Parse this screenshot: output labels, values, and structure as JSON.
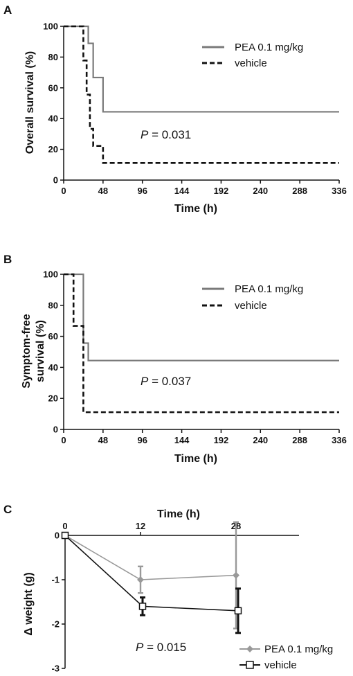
{
  "chart_data": [
    {
      "panel": "A",
      "type": "line",
      "step": true,
      "ylabel": "Overall survival (%)",
      "xlabel": "Time (h)",
      "xlim": [
        0,
        336
      ],
      "ylim": [
        0,
        100
      ],
      "xticks": [
        "0",
        "48",
        "96",
        "144",
        "192",
        "240",
        "288",
        "336"
      ],
      "yticks": [
        "0",
        "20",
        "40",
        "60",
        "80",
        "100"
      ],
      "pvalue": "0.031",
      "legend_position": "top-right",
      "series": [
        {
          "name": "PEA 0.1 mg/kg",
          "color": "#7a7a7a",
          "dash": "solid",
          "x": [
            0,
            30,
            36,
            48,
            336
          ],
          "y": [
            100,
            88.9,
            66.7,
            44.4,
            44.4
          ]
        },
        {
          "name": "vehicle",
          "color": "#111111",
          "dash": "dashed",
          "x": [
            0,
            24,
            28,
            32,
            36,
            48,
            336
          ],
          "y": [
            100,
            77.8,
            55.6,
            33.3,
            22.2,
            11.1,
            11.1
          ]
        }
      ]
    },
    {
      "panel": "B",
      "type": "line",
      "step": true,
      "ylabel": "Symptom-free survival (%)",
      "ylabel_lines": [
        "Symptom-free",
        "survival (%)"
      ],
      "xlabel": "Time  (h)",
      "xlim": [
        0,
        336
      ],
      "ylim": [
        0,
        100
      ],
      "xticks": [
        "0",
        "48",
        "96",
        "144",
        "192",
        "240",
        "288",
        "336"
      ],
      "yticks": [
        "0",
        "20",
        "40",
        "60",
        "80",
        "100"
      ],
      "pvalue": "0.037",
      "legend_position": "top-right",
      "series": [
        {
          "name": "PEA 0.1 mg/kg",
          "color": "#7a7a7a",
          "dash": "solid",
          "x": [
            0,
            24,
            30,
            336
          ],
          "y": [
            100,
            55.6,
            44.4,
            44.4
          ]
        },
        {
          "name": "vehicle",
          "color": "#111111",
          "dash": "dashed",
          "x": [
            0,
            12,
            24,
            336
          ],
          "y": [
            100,
            66.7,
            11.1,
            11.1
          ]
        }
      ]
    },
    {
      "panel": "C",
      "type": "line",
      "ylabel": "Δ weight (g)",
      "xlabel": "Time (h)",
      "xticks": [
        "0",
        "12",
        "28"
      ],
      "yticks": [
        "0",
        "-1",
        "-2",
        "-3"
      ],
      "ylim": [
        -3,
        0
      ],
      "pvalue": "0.015",
      "legend_position": "bottom-right",
      "series": [
        {
          "name": "PEA 0.1 mg/kg",
          "color": "#999999",
          "marker": "diamond",
          "x": [
            0,
            12,
            28
          ],
          "y": [
            0,
            -1.0,
            -0.9
          ],
          "err": [
            0,
            0.3,
            1.2
          ]
        },
        {
          "name": "vehicle",
          "color": "#111111",
          "marker": "square",
          "x": [
            0,
            12,
            28
          ],
          "y": [
            0,
            -1.6,
            -1.7
          ],
          "err": [
            0,
            0.2,
            0.5
          ]
        }
      ]
    }
  ],
  "p_prefix": "P"
}
